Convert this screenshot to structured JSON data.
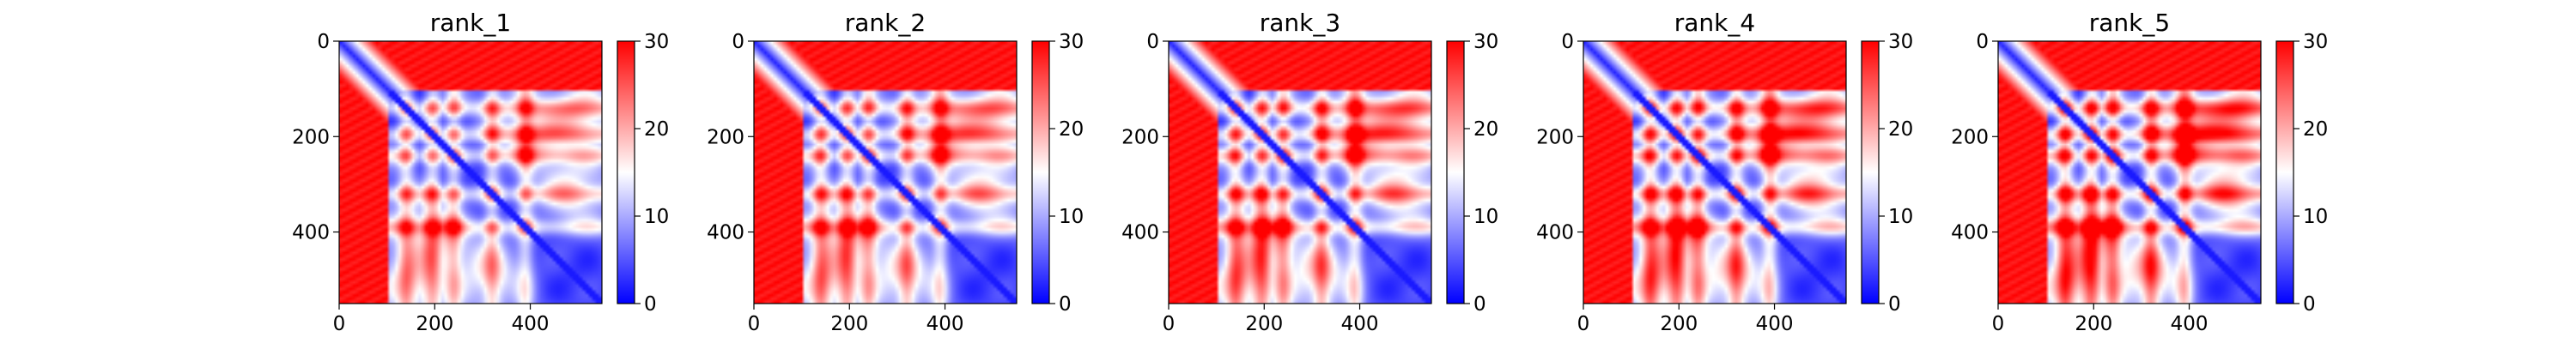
{
  "chart_data": [
    {
      "type": "heatmap",
      "title": "rank_1",
      "x_ticks": [
        0,
        200,
        400
      ],
      "y_ticks": [
        0,
        200,
        400
      ],
      "xlim": [
        0,
        550
      ],
      "ylim": [
        550,
        0
      ],
      "colorbar": {
        "ticks": [
          0,
          10,
          20,
          30
        ],
        "range": [
          0,
          30
        ],
        "colormap": "bwr"
      },
      "colors": {
        "low": "#0000ff",
        "mid": "#ffffff",
        "high": "#ff0000"
      }
    },
    {
      "type": "heatmap",
      "title": "rank_2",
      "x_ticks": [
        0,
        200,
        400
      ],
      "y_ticks": [
        0,
        200,
        400
      ],
      "xlim": [
        0,
        550
      ],
      "ylim": [
        550,
        0
      ],
      "colorbar": {
        "ticks": [
          0,
          10,
          20,
          30
        ],
        "range": [
          0,
          30
        ],
        "colormap": "bwr"
      },
      "colors": {
        "low": "#0000ff",
        "mid": "#ffffff",
        "high": "#ff0000"
      }
    },
    {
      "type": "heatmap",
      "title": "rank_3",
      "x_ticks": [
        0,
        200,
        400
      ],
      "y_ticks": [
        0,
        200,
        400
      ],
      "xlim": [
        0,
        550
      ],
      "ylim": [
        550,
        0
      ],
      "colorbar": {
        "ticks": [
          0,
          10,
          20,
          30
        ],
        "range": [
          0,
          30
        ],
        "colormap": "bwr"
      },
      "colors": {
        "low": "#0000ff",
        "mid": "#ffffff",
        "high": "#ff0000"
      }
    },
    {
      "type": "heatmap",
      "title": "rank_4",
      "x_ticks": [
        0,
        200,
        400
      ],
      "y_ticks": [
        0,
        200,
        400
      ],
      "xlim": [
        0,
        550
      ],
      "ylim": [
        550,
        0
      ],
      "colorbar": {
        "ticks": [
          0,
          10,
          20,
          30
        ],
        "range": [
          0,
          30
        ],
        "colormap": "bwr"
      },
      "colors": {
        "low": "#0000ff",
        "mid": "#ffffff",
        "high": "#ff0000"
      }
    },
    {
      "type": "heatmap",
      "title": "rank_5",
      "x_ticks": [
        0,
        200,
        400
      ],
      "y_ticks": [
        0,
        200,
        400
      ],
      "xlim": [
        0,
        550
      ],
      "ylim": [
        550,
        0
      ],
      "colorbar": {
        "ticks": [
          0,
          10,
          20,
          30
        ],
        "range": [
          0,
          30
        ],
        "colormap": "bwr"
      },
      "colors": {
        "low": "#0000ff",
        "mid": "#ffffff",
        "high": "#ff0000"
      }
    }
  ]
}
